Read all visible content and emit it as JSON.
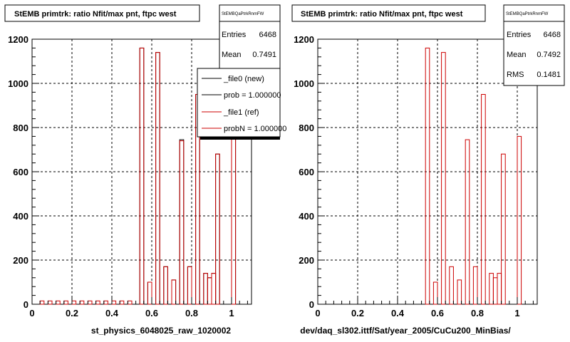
{
  "footer_text": "",
  "chart_data": [
    {
      "type": "bar",
      "title": "StEMB primtrk: ratio Nfit/max pnt, ftpc west",
      "xlabel": "st_physics_6048025_raw_1020002",
      "ylabel": "",
      "xlim": [
        0,
        1.1
      ],
      "ylim": [
        0,
        1200
      ],
      "xticks": [
        "0",
        "0.2",
        "0.4",
        "0.6",
        "0.8",
        "1"
      ],
      "yticks": [
        "0",
        "200",
        "400",
        "600",
        "800",
        "1000",
        "1200"
      ],
      "grid": true,
      "stats": {
        "name": "StEMBQaPtrkRnmFW",
        "rows": [
          {
            "label": "Entries",
            "value": "6468"
          },
          {
            "label": "Mean",
            "value": "0.7491"
          }
        ]
      },
      "legend": {
        "placement": "top-right",
        "entries": [
          {
            "label": "_file0 (new)",
            "color": "#000000"
          },
          {
            "label": "prob = 1.000000",
            "color": "#000000"
          },
          {
            "label": "_file1 (ref)",
            "color": "#cc0000"
          },
          {
            "label": "probN = 1.000000",
            "color": "#cc0000"
          }
        ]
      },
      "bin_width": 0.02,
      "series": [
        {
          "name": "_file0 (new)",
          "color": "#000000",
          "bins": [
            [
              0.54,
              1160
            ],
            [
              0.58,
              100
            ],
            [
              0.62,
              1140
            ],
            [
              0.66,
              170
            ],
            [
              0.7,
              110
            ],
            [
              0.74,
              745
            ],
            [
              0.78,
              170
            ],
            [
              0.82,
              950
            ],
            [
              0.86,
              140
            ],
            [
              0.88,
              120
            ],
            [
              0.9,
              140
            ],
            [
              0.92,
              680
            ],
            [
              1.0,
              760
            ]
          ]
        },
        {
          "name": "_file1 (ref)",
          "color": "#cc0000",
          "bins": [
            [
              0.04,
              15
            ],
            [
              0.08,
              15
            ],
            [
              0.12,
              15
            ],
            [
              0.16,
              15
            ],
            [
              0.2,
              15
            ],
            [
              0.24,
              15
            ],
            [
              0.28,
              15
            ],
            [
              0.32,
              15
            ],
            [
              0.36,
              15
            ],
            [
              0.4,
              15
            ],
            [
              0.44,
              15
            ],
            [
              0.48,
              15
            ],
            [
              0.54,
              1160
            ],
            [
              0.58,
              100
            ],
            [
              0.62,
              1140
            ],
            [
              0.66,
              170
            ],
            [
              0.7,
              110
            ],
            [
              0.74,
              740
            ],
            [
              0.78,
              170
            ],
            [
              0.82,
              950
            ],
            [
              0.86,
              140
            ],
            [
              0.88,
              120
            ],
            [
              0.9,
              140
            ],
            [
              0.92,
              680
            ],
            [
              1.0,
              760
            ]
          ]
        }
      ]
    },
    {
      "type": "bar",
      "title": "StEMB primtrk: ratio Nfit/max pnt, ftpc west",
      "xlabel": "dev/daq_sl302.ittf/Sat/year_2005/CuCu200_MinBias/",
      "ylabel": "",
      "xlim": [
        0,
        1.1
      ],
      "ylim": [
        0,
        1200
      ],
      "xticks": [
        "0",
        "0.2",
        "0.4",
        "0.6",
        "0.8",
        "1"
      ],
      "yticks": [
        "0",
        "200",
        "400",
        "600",
        "800",
        "1000",
        "1200"
      ],
      "grid": true,
      "stats": {
        "name": "StEMBQaPtrkRnmFW",
        "rows": [
          {
            "label": "Entries",
            "value": "6468"
          },
          {
            "label": "Mean",
            "value": "0.7492"
          },
          {
            "label": "RMS",
            "value": "0.1481"
          }
        ]
      },
      "legend": null,
      "bin_width": 0.02,
      "series": [
        {
          "name": "",
          "color": "#cc0000",
          "bins": [
            [
              0.54,
              1160
            ],
            [
              0.58,
              100
            ],
            [
              0.62,
              1140
            ],
            [
              0.66,
              170
            ],
            [
              0.7,
              110
            ],
            [
              0.74,
              745
            ],
            [
              0.78,
              170
            ],
            [
              0.82,
              950
            ],
            [
              0.86,
              140
            ],
            [
              0.88,
              120
            ],
            [
              0.9,
              140
            ],
            [
              0.92,
              680
            ],
            [
              1.0,
              760
            ]
          ]
        }
      ]
    }
  ]
}
